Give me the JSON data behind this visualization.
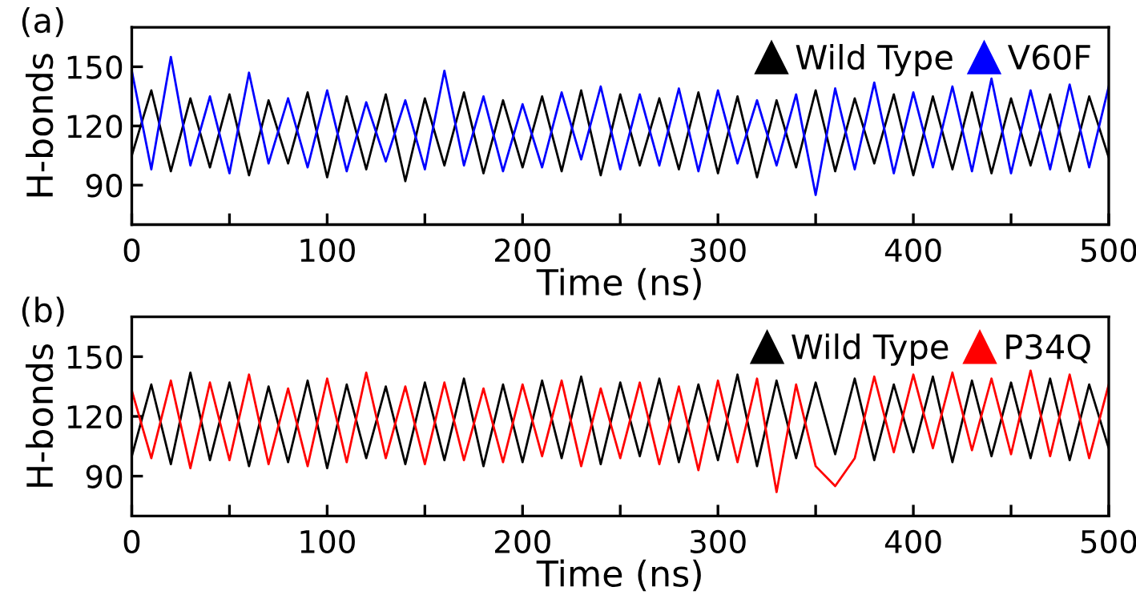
{
  "chart_data": [
    {
      "type": "line",
      "title": "(a)",
      "xlabel": "Time (ns)",
      "ylabel": "H-bonds",
      "legend": "top right",
      "grid": false,
      "x": [
        0,
        10,
        20,
        30,
        40,
        50,
        60,
        70,
        80,
        90,
        100,
        110,
        120,
        130,
        140,
        150,
        160,
        170,
        180,
        190,
        200,
        210,
        220,
        230,
        240,
        250,
        260,
        270,
        280,
        290,
        300,
        310,
        320,
        330,
        340,
        350,
        360,
        370,
        380,
        390,
        400,
        410,
        420,
        430,
        440,
        450,
        460,
        470,
        480,
        490,
        500
      ],
      "xlim": [
        0,
        500
      ],
      "xticks": [
        0,
        {
          "value": 50,
          "label": null
        },
        100,
        {
          "value": 150,
          "label": null
        },
        200,
        {
          "value": 250,
          "label": null
        },
        300,
        {
          "value": 350,
          "label": null
        },
        400,
        {
          "value": 450,
          "label": null
        },
        500
      ],
      "ylim": [
        70,
        170
      ],
      "yticks": [
        90,
        120,
        150
      ],
      "series": [
        {
          "name": "Wild Type",
          "color": "#000000",
          "values": [
            105,
            138,
            97,
            134,
            99,
            136,
            95,
            133,
            101,
            137,
            94,
            135,
            98,
            136,
            92,
            134,
            100,
            137,
            96,
            133,
            99,
            135,
            97,
            138,
            95,
            136,
            100,
            134,
            98,
            137,
            96,
            135,
            94,
            133,
            99,
            138,
            97,
            134,
            101,
            136,
            95,
            135,
            98,
            137,
            96,
            134,
            100,
            136,
            97,
            135,
            104
          ]
        },
        {
          "name": "V60F",
          "color": "#0000ff",
          "values": [
            148,
            98,
            155,
            100,
            135,
            96,
            147,
            101,
            134,
            99,
            138,
            97,
            132,
            102,
            133,
            98,
            148,
            100,
            135,
            97,
            131,
            99,
            137,
            103,
            140,
            98,
            136,
            100,
            139,
            97,
            138,
            101,
            133,
            100,
            136,
            85,
            139,
            98,
            142,
            96,
            137,
            99,
            140,
            97,
            144,
            96,
            138,
            98,
            141,
            99,
            140
          ]
        }
      ]
    },
    {
      "type": "line",
      "title": "(b)",
      "xlabel": "Time (ns)",
      "ylabel": "H-bonds",
      "legend": "top right",
      "grid": false,
      "x": [
        0,
        10,
        20,
        30,
        40,
        50,
        60,
        70,
        80,
        90,
        100,
        110,
        120,
        130,
        140,
        150,
        160,
        170,
        180,
        190,
        200,
        210,
        220,
        230,
        240,
        250,
        260,
        270,
        280,
        290,
        300,
        310,
        320,
        330,
        340,
        350,
        360,
        370,
        380,
        390,
        400,
        410,
        420,
        430,
        440,
        450,
        460,
        470,
        480,
        490,
        500
      ],
      "xlim": [
        0,
        500
      ],
      "xticks": [
        0,
        {
          "value": 50,
          "label": null
        },
        100,
        {
          "value": 150,
          "label": null
        },
        200,
        {
          "value": 250,
          "label": null
        },
        300,
        {
          "value": 350,
          "label": null
        },
        400,
        {
          "value": 450,
          "label": null
        },
        500
      ],
      "ylim": [
        70,
        170
      ],
      "yticks": [
        90,
        120,
        150
      ],
      "series": [
        {
          "name": "Wild Type",
          "color": "#000000",
          "values": [
            100,
            136,
            96,
            142,
            98,
            137,
            95,
            135,
            97,
            138,
            94,
            136,
            99,
            135,
            96,
            137,
            98,
            139,
            95,
            136,
            97,
            138,
            99,
            140,
            96,
            137,
            100,
            139,
            97,
            136,
            98,
            141,
            95,
            138,
            99,
            137,
            101,
            139,
            98,
            136,
            102,
            140,
            97,
            138,
            100,
            137,
            99,
            139,
            98,
            136,
            104
          ]
        },
        {
          "name": "P34Q",
          "color": "#ff0000",
          "values": [
            133,
            99,
            138,
            94,
            137,
            98,
            141,
            96,
            134,
            95,
            139,
            97,
            142,
            99,
            135,
            96,
            137,
            98,
            134,
            97,
            136,
            100,
            138,
            95,
            134,
            99,
            137,
            96,
            135,
            93,
            138,
            97,
            139,
            82,
            136,
            95,
            85,
            99,
            140,
            102,
            141,
            104,
            142,
            103,
            139,
            101,
            143,
            100,
            141,
            99,
            136
          ]
        }
      ]
    }
  ]
}
